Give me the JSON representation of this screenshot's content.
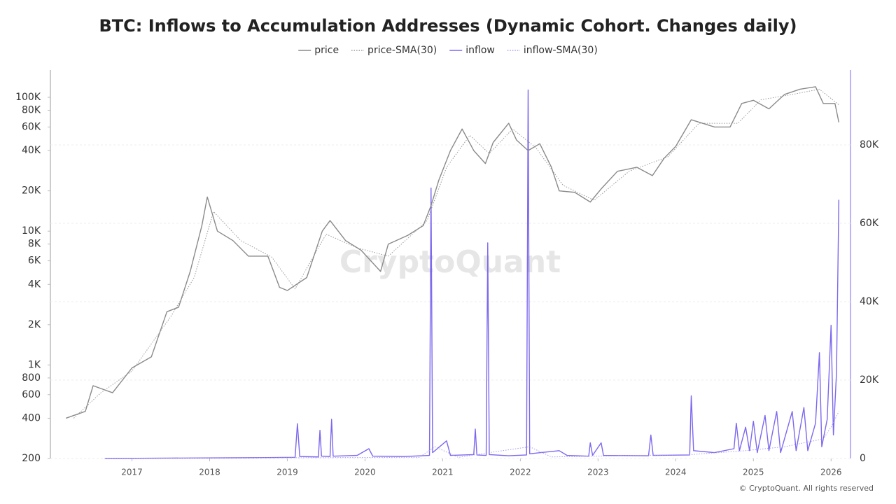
{
  "chart_data": {
    "type": "line",
    "title": "BTC: Inflows to Accumulation Addresses (Dynamic Cohort. Changes daily)",
    "watermark": "CryptoQuant",
    "source": "© CryptoQuant. All rights reserved",
    "xlim": [
      2015.95,
      2026.25
    ],
    "xticks": [
      2017,
      2018,
      2019,
      2020,
      2021,
      2022,
      2023,
      2024,
      2025,
      2026
    ],
    "ylim": [
      200,
      160000
    ],
    "y_log": true,
    "yticks": [
      200,
      400,
      600,
      800,
      {
        "value": 1000,
        "label": "1K"
      },
      {
        "value": 2000,
        "label": "2K"
      },
      {
        "value": 4000,
        "label": "4K"
      },
      {
        "value": 6000,
        "label": "6K"
      },
      {
        "value": 8000,
        "label": "8K"
      },
      {
        "value": 10000,
        "label": "10K"
      },
      {
        "value": 20000,
        "label": "20K"
      },
      {
        "value": 40000,
        "label": "40K"
      },
      {
        "value": 60000,
        "label": "60K"
      },
      {
        "value": 80000,
        "label": "80K"
      },
      {
        "value": 100000,
        "label": "100K"
      }
    ],
    "y2lim": [
      0,
      99100
    ],
    "y2ticks": [
      0,
      {
        "value": 20000,
        "label": "20K"
      },
      {
        "value": 40000,
        "label": "40K"
      },
      {
        "value": 60000,
        "label": "60K"
      },
      {
        "value": 80000,
        "label": "80K"
      }
    ],
    "grid": true,
    "legend": "top",
    "series": [
      {
        "name": "price",
        "color": "#8a8a8a",
        "style": "solid",
        "x": [
          2016.15,
          2016.4,
          2016.5,
          2016.75,
          2017.0,
          2017.25,
          2017.45,
          2017.6,
          2017.75,
          2017.9,
          2017.97,
          2018.1,
          2018.3,
          2018.5,
          2018.75,
          2018.9,
          2019.0,
          2019.25,
          2019.45,
          2019.55,
          2019.75,
          2019.95,
          2020.2,
          2020.3,
          2020.55,
          2020.75,
          2020.85,
          2020.95,
          2021.1,
          2021.25,
          2021.4,
          2021.55,
          2021.65,
          2021.85,
          2021.95,
          2022.1,
          2022.25,
          2022.4,
          2022.5,
          2022.7,
          2022.9,
          2023.05,
          2023.25,
          2023.5,
          2023.7,
          2023.85,
          2024.0,
          2024.2,
          2024.5,
          2024.7,
          2024.85,
          2025.0,
          2025.2,
          2025.4,
          2025.6,
          2025.8,
          2025.9,
          2026.05,
          2026.1
        ],
        "values": [
          400,
          450,
          700,
          620,
          950,
          1150,
          2500,
          2700,
          5000,
          11000,
          18000,
          10000,
          8500,
          6500,
          6500,
          3800,
          3600,
          4500,
          10000,
          12000,
          8500,
          7200,
          5000,
          8000,
          9300,
          11000,
          15500,
          24000,
          40000,
          58000,
          40000,
          32000,
          46000,
          64000,
          48000,
          40000,
          45000,
          30000,
          20000,
          19500,
          16500,
          21000,
          28000,
          30000,
          26000,
          35000,
          43000,
          68000,
          60000,
          60000,
          90000,
          95000,
          82000,
          105000,
          115000,
          120000,
          90000,
          90000,
          65000
        ]
      },
      {
        "name": "price-SMA(30)",
        "color": "#9a9a9a",
        "style": "dotted",
        "x": [
          2016.25,
          2016.6,
          2017.0,
          2017.5,
          2017.8,
          2018.05,
          2018.4,
          2018.8,
          2019.1,
          2019.5,
          2019.9,
          2020.3,
          2020.8,
          2021.05,
          2021.35,
          2021.6,
          2021.9,
          2022.2,
          2022.55,
          2022.95,
          2023.4,
          2023.9,
          2024.3,
          2024.8,
          2025.1,
          2025.5,
          2025.85,
          2026.1
        ],
        "values": [
          400,
          620,
          900,
          2300,
          4500,
          14000,
          8500,
          6400,
          3700,
          9500,
          7500,
          6500,
          12000,
          30000,
          52000,
          38000,
          58000,
          42000,
          22000,
          17000,
          28000,
          36000,
          64000,
          64000,
          96000,
          105000,
          115000,
          88000
        ]
      },
      {
        "name": "inflow",
        "color": "#7b68ee",
        "style": "solid",
        "axis": "y2",
        "x": [
          2016.65,
          2017.5,
          2018.5,
          2019.1,
          2019.13,
          2019.16,
          2019.4,
          2019.42,
          2019.44,
          2019.55,
          2019.57,
          2019.59,
          2019.9,
          2020.05,
          2020.1,
          2020.5,
          2020.83,
          2020.85,
          2020.87,
          2021.05,
          2021.1,
          2021.4,
          2021.42,
          2021.44,
          2021.56,
          2021.58,
          2021.6,
          2021.85,
          2022.08,
          2022.1,
          2022.12,
          2022.5,
          2022.6,
          2022.88,
          2022.9,
          2022.93,
          2023.04,
          2023.07,
          2023.65,
          2023.68,
          2023.71,
          2024.18,
          2024.2,
          2024.23,
          2024.5,
          2024.75,
          2024.78,
          2024.82,
          2024.9,
          2024.95,
          2025.0,
          2025.05,
          2025.15,
          2025.2,
          2025.3,
          2025.35,
          2025.5,
          2025.55,
          2025.65,
          2025.7,
          2025.8,
          2025.85,
          2025.88,
          2025.95,
          2026.0,
          2026.03,
          2026.07,
          2026.1
        ],
        "values": [
          0,
          100,
          200,
          300,
          8900,
          500,
          400,
          7200,
          600,
          500,
          10000,
          600,
          800,
          2500,
          600,
          500,
          800,
          69000,
          1500,
          4500,
          800,
          1000,
          7500,
          900,
          800,
          55000,
          1000,
          700,
          900,
          94000,
          1200,
          2000,
          800,
          600,
          4000,
          800,
          4000,
          800,
          700,
          6000,
          800,
          900,
          16000,
          2000,
          1500,
          2500,
          9000,
          2000,
          8000,
          2000,
          9500,
          1500,
          11000,
          2000,
          12000,
          1500,
          12000,
          2000,
          13000,
          2000,
          9000,
          27000,
          3000,
          10000,
          34000,
          6000,
          22000,
          66000
        ]
      },
      {
        "name": "inflow-SMA(30)",
        "color": "#a99cf2",
        "style": "dotted",
        "axis": "y2",
        "x": [
          2016.65,
          2019.0,
          2020.7,
          2020.9,
          2021.2,
          2021.6,
          2022.12,
          2022.4,
          2024.2,
          2024.9,
          2025.4,
          2025.9,
          2026.0,
          2026.1
        ],
        "values": [
          0,
          200,
          300,
          3000,
          300,
          1500,
          3000,
          400,
          1000,
          2000,
          3000,
          5000,
          8000,
          12000
        ]
      }
    ]
  }
}
